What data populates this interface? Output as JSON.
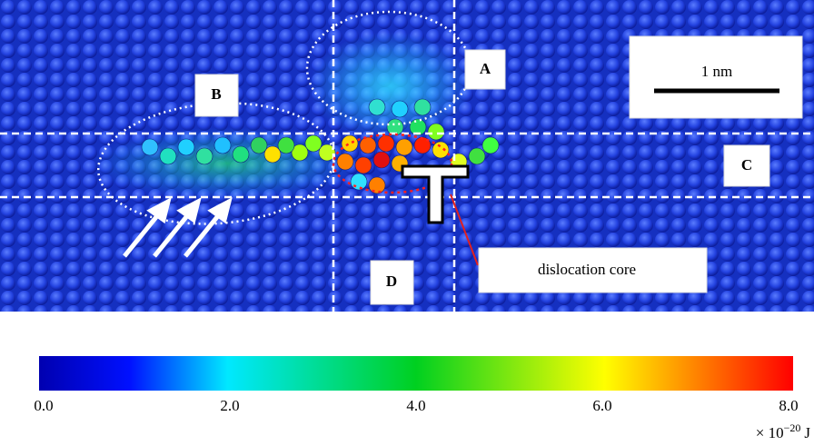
{
  "figure": {
    "labels": {
      "a": "A",
      "b": "B",
      "c": "C",
      "d": "D"
    },
    "scale_bar": "1 nm",
    "callout": "dislocation core",
    "colorbar": {
      "range": [
        0,
        8
      ],
      "ticks": [
        {
          "value": 0,
          "label": "0.0"
        },
        {
          "value": 2,
          "label": "2.0"
        },
        {
          "value": 4,
          "label": "4.0"
        },
        {
          "value": 6,
          "label": "6.0"
        },
        {
          "value": 8,
          "label": "8.0"
        }
      ],
      "unit_base": "× 10",
      "unit_exponent": "−20",
      "unit_symbol": "J"
    }
  }
}
